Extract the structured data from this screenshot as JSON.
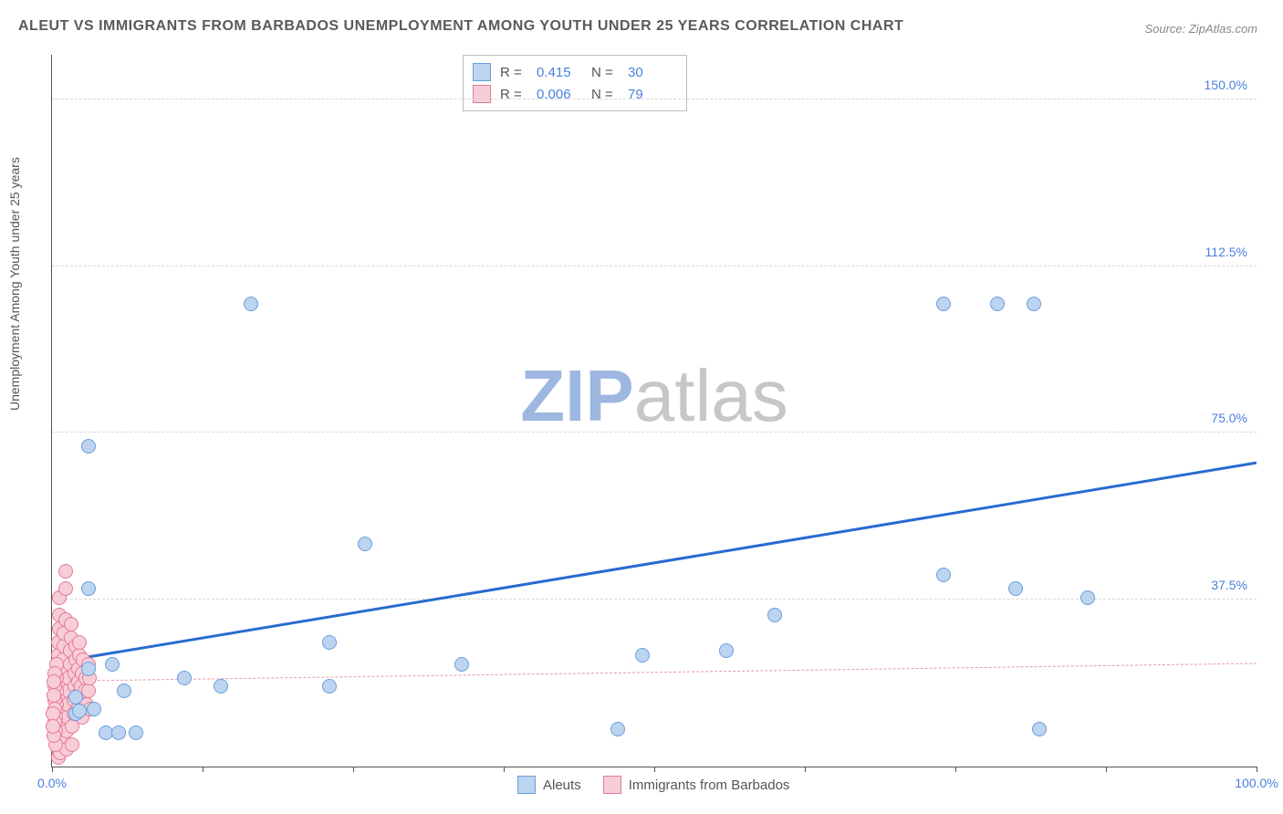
{
  "title": "ALEUT VS IMMIGRANTS FROM BARBADOS UNEMPLOYMENT AMONG YOUTH UNDER 25 YEARS CORRELATION CHART",
  "source": "Source: ZipAtlas.com",
  "y_axis_label": "Unemployment Among Youth under 25 years",
  "watermark_a": "ZIP",
  "watermark_b": "atlas",
  "chart": {
    "type": "scatter",
    "xlim": [
      0,
      100
    ],
    "ylim": [
      0,
      160
    ],
    "x_ticks": [
      0,
      12.5,
      25,
      37.5,
      50,
      62.5,
      75,
      87.5,
      100
    ],
    "x_tick_labels": {
      "0": "0.0%",
      "100": "100.0%"
    },
    "y_gridlines": [
      37.5,
      75.0,
      112.5,
      150.0
    ],
    "y_tick_labels": [
      "37.5%",
      "75.0%",
      "112.5%",
      "150.0%"
    ],
    "background_color": "#ffffff",
    "grid_color": "#d8d8d8",
    "axis_color": "#555555",
    "tick_label_color": "#4a7fe0",
    "marker_radius": 8,
    "series": [
      {
        "name": "Aleuts",
        "fill": "#bcd4f0",
        "stroke": "#6a9edb",
        "r": 0.415,
        "n": 30,
        "trend": {
          "color": "#2a6ad0",
          "width": 3,
          "dash": "solid",
          "y_at_x0": 23,
          "y_at_x100": 68
        },
        "points": [
          [
            3,
            72
          ],
          [
            16.5,
            104
          ],
          [
            74,
            104
          ],
          [
            78.5,
            104
          ],
          [
            81.5,
            104
          ],
          [
            26,
            50
          ],
          [
            34,
            23
          ],
          [
            47,
            8.5
          ],
          [
            49,
            25
          ],
          [
            56,
            26
          ],
          [
            60,
            34
          ],
          [
            74,
            43
          ],
          [
            80,
            40
          ],
          [
            82,
            8.5
          ],
          [
            86,
            38
          ],
          [
            3,
            22
          ],
          [
            3.5,
            13
          ],
          [
            4.5,
            7.5
          ],
          [
            5.5,
            7.5
          ],
          [
            7,
            7.5
          ],
          [
            2,
            12
          ],
          [
            2.3,
            12.5
          ],
          [
            3,
            40
          ],
          [
            5,
            23
          ],
          [
            6,
            17
          ],
          [
            2,
            15.5
          ],
          [
            11,
            20
          ],
          [
            14,
            18
          ],
          [
            23,
            18
          ],
          [
            23,
            28
          ]
        ]
      },
      {
        "name": "Immigrants from Barbados",
        "fill": "#f7cdd7",
        "stroke": "#e47a94",
        "r": 0.006,
        "n": 79,
        "trend": {
          "color": "#e49aa8",
          "width": 1.5,
          "dash": "6,5",
          "y_at_x0": 19,
          "y_at_x100": 23
        },
        "points": [
          [
            0.5,
            2
          ],
          [
            0.5,
            4
          ],
          [
            0.5,
            7
          ],
          [
            0.5,
            10
          ],
          [
            0.5,
            13
          ],
          [
            0.5,
            16
          ],
          [
            0.5,
            19
          ],
          [
            0.5,
            22
          ],
          [
            0.5,
            25
          ],
          [
            0.5,
            28
          ],
          [
            0.6,
            31
          ],
          [
            0.6,
            34
          ],
          [
            0.6,
            38
          ],
          [
            0.7,
            3
          ],
          [
            0.7,
            6
          ],
          [
            0.7,
            9
          ],
          [
            0.8,
            12
          ],
          [
            0.8,
            15
          ],
          [
            0.8,
            18
          ],
          [
            0.9,
            21
          ],
          [
            0.9,
            24
          ],
          [
            1.0,
            27
          ],
          [
            1.0,
            30
          ],
          [
            1.1,
            33
          ],
          [
            1.1,
            40
          ],
          [
            1.1,
            44
          ],
          [
            1.2,
            4
          ],
          [
            1.2,
            8
          ],
          [
            1.3,
            11
          ],
          [
            1.3,
            14
          ],
          [
            1.4,
            17
          ],
          [
            1.4,
            20
          ],
          [
            1.5,
            23
          ],
          [
            1.5,
            26
          ],
          [
            1.6,
            29
          ],
          [
            1.6,
            32
          ],
          [
            1.7,
            5
          ],
          [
            1.7,
            9
          ],
          [
            1.8,
            12
          ],
          [
            1.8,
            15
          ],
          [
            1.9,
            18
          ],
          [
            1.9,
            21
          ],
          [
            2.0,
            24
          ],
          [
            2.0,
            27
          ],
          [
            2.1,
            13
          ],
          [
            2.1,
            16
          ],
          [
            2.2,
            19
          ],
          [
            2.2,
            22
          ],
          [
            2.3,
            25
          ],
          [
            2.3,
            28
          ],
          [
            2.4,
            15
          ],
          [
            2.4,
            18
          ],
          [
            2.5,
            21
          ],
          [
            2.5,
            11
          ],
          [
            2.6,
            24
          ],
          [
            2.7,
            17
          ],
          [
            2.8,
            20
          ],
          [
            2.9,
            14
          ],
          [
            3.0,
            23
          ],
          [
            3.0,
            17
          ],
          [
            3.1,
            20
          ],
          [
            3.2,
            13
          ],
          [
            0.3,
            5
          ],
          [
            0.3,
            8
          ],
          [
            0.3,
            11
          ],
          [
            0.4,
            14
          ],
          [
            0.4,
            17
          ],
          [
            0.4,
            20
          ],
          [
            0.4,
            23
          ],
          [
            0.2,
            15
          ],
          [
            0.2,
            18
          ],
          [
            0.2,
            21
          ],
          [
            0.2,
            10
          ],
          [
            0.2,
            13
          ],
          [
            0.15,
            16
          ],
          [
            0.15,
            19
          ],
          [
            0.15,
            7
          ],
          [
            0.1,
            12
          ],
          [
            0.1,
            9
          ]
        ]
      }
    ]
  },
  "legend_top": {
    "r_label": "R  =",
    "n_label": "N  ="
  },
  "legend_bottom_labels": [
    "Aleuts",
    "Immigrants from Barbados"
  ],
  "watermark_colors": {
    "a": "#9db7e0",
    "b": "#c7c7c7"
  }
}
